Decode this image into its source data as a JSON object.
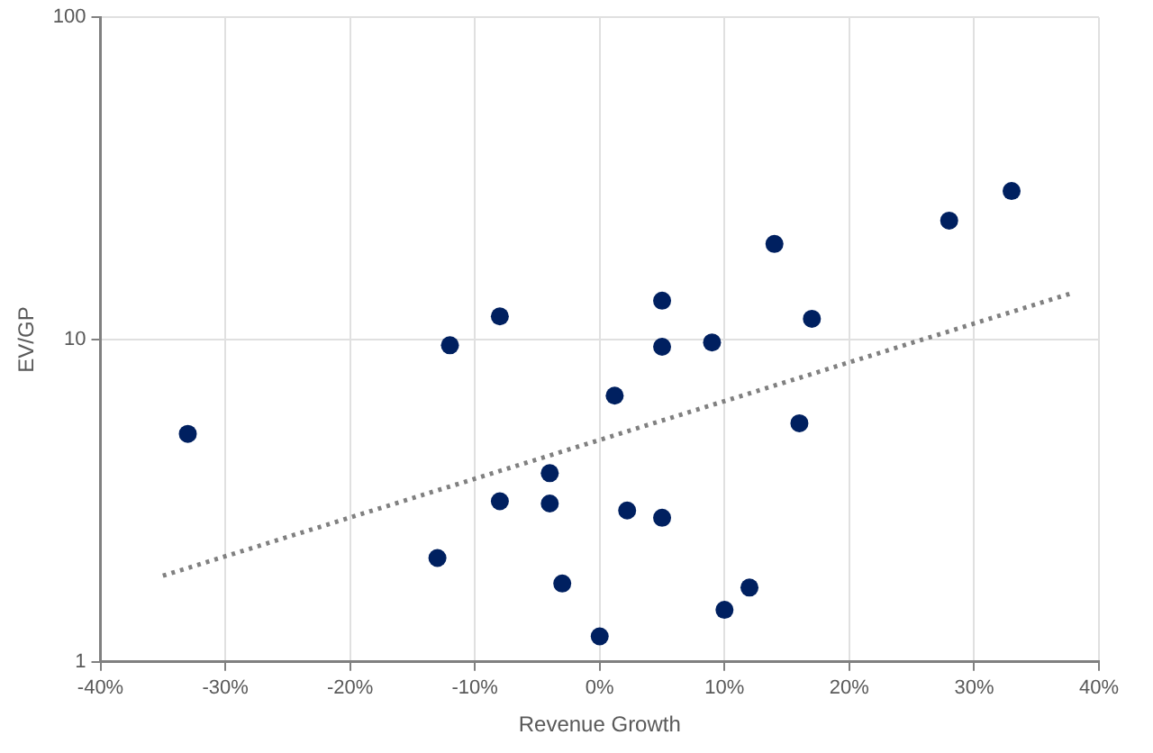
{
  "chart_data": {
    "type": "scatter",
    "xlabel": "Revenue Growth",
    "ylabel": "EV/GP",
    "log": "y",
    "grid": true,
    "legend": false,
    "marker": "circle",
    "xlim": [
      -40,
      40
    ],
    "xticks": [
      {
        "value": -40,
        "label": "-40%"
      },
      {
        "value": -30,
        "label": "-30%"
      },
      {
        "value": -20,
        "label": "-20%"
      },
      {
        "value": -10,
        "label": "-10%"
      },
      {
        "value": 0,
        "label": "0%"
      },
      {
        "value": 10,
        "label": "10%"
      },
      {
        "value": 20,
        "label": "20%"
      },
      {
        "value": 30,
        "label": "30%"
      },
      {
        "value": 40,
        "label": "40%"
      }
    ],
    "ylim": [
      1,
      100
    ],
    "yticks": [
      1,
      10,
      100
    ],
    "series": [
      {
        "color": "#002060",
        "x": [
          -33,
          -12,
          -8,
          -13,
          -8,
          -4,
          -4,
          -3,
          0,
          1.2,
          2.2,
          5,
          5,
          5,
          9,
          10,
          12,
          14,
          16,
          17,
          28,
          33
        ],
        "values": [
          5.1,
          9.6,
          11.8,
          2.1,
          3.15,
          3.85,
          3.1,
          1.75,
          1.2,
          6.7,
          2.95,
          2.8,
          13.2,
          9.5,
          9.8,
          1.45,
          1.7,
          19.8,
          5.5,
          11.6,
          23.4,
          28.9
        ]
      },
      {
        "type": "line",
        "color": "#808080",
        "line_style": "dotted",
        "marker": "none",
        "x": [
          -35,
          38
        ],
        "values": [
          1.85,
          14
        ]
      }
    ]
  }
}
